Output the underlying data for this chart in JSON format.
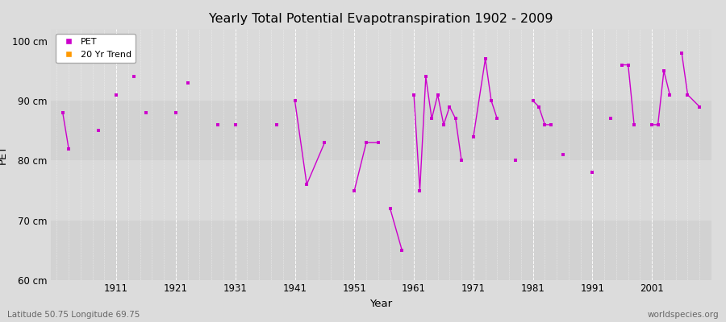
{
  "title": "Yearly Total Potential Evapotranspiration 1902 - 2009",
  "xlabel": "Year",
  "ylabel": "PET",
  "lat_lon_label": "Latitude 50.75 Longitude 69.75",
  "watermark": "worldspecies.org",
  "ylim": [
    60,
    102
  ],
  "yticks": [
    60,
    70,
    80,
    90,
    100
  ],
  "ytick_labels": [
    "60 cm",
    "70 cm",
    "80 cm",
    "90 cm",
    "100 cm"
  ],
  "xlim": [
    1900,
    2011
  ],
  "xticks": [
    1911,
    1921,
    1931,
    1941,
    1951,
    1961,
    1971,
    1981,
    1991,
    2001
  ],
  "background_color": "#dcdcdc",
  "plot_bg_color": "#dcdcdc",
  "line_color": "#cc00cc",
  "trend_color": "#ff9900",
  "legend_labels": [
    "PET",
    "20 Yr Trend"
  ],
  "year_pet_data": {
    "1902": 88,
    "1903": 82,
    "1908": 85,
    "1911": 91,
    "1914": 94,
    "1916": 88,
    "1921": 88,
    "1923": 93,
    "1928": 86,
    "1931": 86,
    "1938": 86,
    "1941": 90,
    "1943": 76,
    "1946": 83,
    "1951": 75,
    "1953": 83,
    "1955": 83,
    "1957": 72,
    "1959": 65,
    "1961": 91,
    "1962": 75,
    "1963": 94,
    "1964": 87,
    "1965": 91,
    "1966": 86,
    "1967": 89,
    "1968": 87,
    "1969": 80,
    "1971": 84,
    "1973": 97,
    "1974": 90,
    "1975": 87,
    "1978": 80,
    "1981": 90,
    "1982": 89,
    "1983": 86,
    "1984": 86,
    "1986": 81,
    "1991": 78,
    "1994": 87,
    "1996": 96,
    "1997": 96,
    "1998": 86,
    "2001": 86,
    "2002": 86,
    "2003": 95,
    "2004": 91,
    "2006": 98,
    "2007": 91,
    "2009": 89
  },
  "connected_segments": [
    [
      1902,
      1903
    ],
    [
      1941,
      1943,
      1946
    ],
    [
      1951,
      1953,
      1955
    ],
    [
      1957,
      1959
    ],
    [
      1961,
      1962,
      1963,
      1964,
      1965,
      1966,
      1967,
      1968,
      1969
    ],
    [
      1971,
      1973,
      1974,
      1975
    ],
    [
      1981,
      1982,
      1983,
      1984
    ],
    [
      1996,
      1997,
      1998
    ],
    [
      2001,
      2002,
      2003,
      2004
    ],
    [
      2006,
      2007,
      2009
    ]
  ],
  "horizontal_bands": [
    {
      "ymin": 60,
      "ymax": 70,
      "color": "#d0d0d0"
    },
    {
      "ymin": 70,
      "ymax": 80,
      "color": "#d8d8d8"
    },
    {
      "ymin": 80,
      "ymax": 90,
      "color": "#d0d0d0"
    },
    {
      "ymin": 90,
      "ymax": 102,
      "color": "#d8d8d8"
    }
  ]
}
